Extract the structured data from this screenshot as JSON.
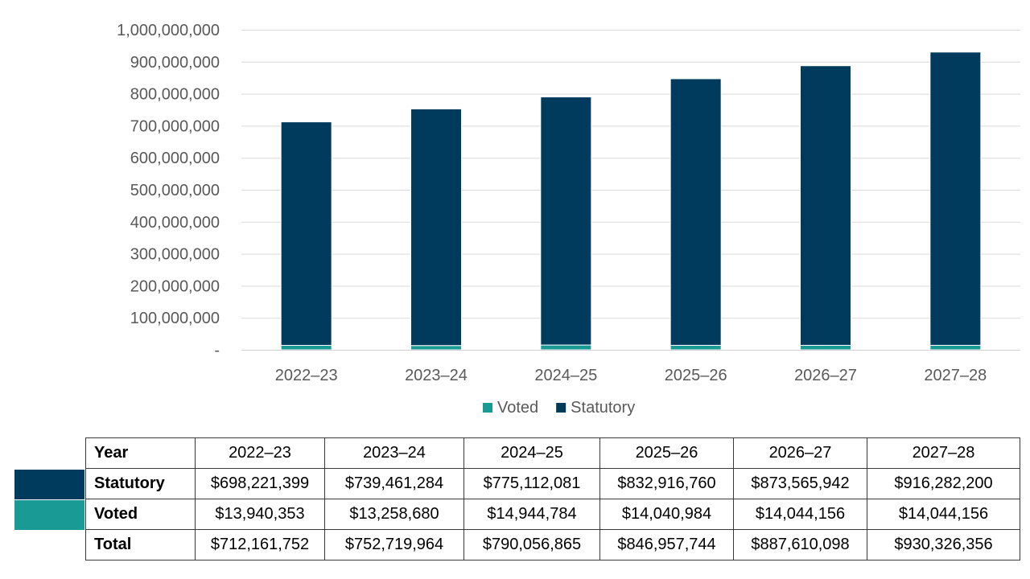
{
  "chart_data": {
    "type": "bar",
    "stacked": true,
    "categories": [
      "2022–23",
      "2023–24",
      "2024–25",
      "2025–26",
      "2026–27",
      "2027–28"
    ],
    "series": [
      {
        "name": "Voted",
        "values": [
          13940353,
          13258680,
          14944784,
          14040984,
          14044156,
          14044156
        ],
        "color": "#1a9a94"
      },
      {
        "name": "Statutory",
        "values": [
          698221399,
          739461284,
          775112081,
          832916760,
          873565942,
          916282200
        ],
        "color": "#003a5d"
      }
    ],
    "ylim": [
      0,
      1000000000
    ],
    "yticks": [
      0,
      100000000,
      200000000,
      300000000,
      400000000,
      500000000,
      600000000,
      700000000,
      800000000,
      900000000,
      1000000000
    ],
    "ytick_labels": [
      "-",
      "100,000,000",
      "200,000,000",
      "300,000,000",
      "400,000,000",
      "500,000,000",
      "600,000,000",
      "700,000,000",
      "800,000,000",
      "900,000,000",
      "1,000,000,000"
    ],
    "grid": true,
    "legend_position": "bottom",
    "title": "",
    "xlabel": "",
    "ylabel": ""
  },
  "table": {
    "header": [
      "Year",
      "2022–23",
      "2023–24",
      "2024–25",
      "2025–26",
      "2026–27",
      "2027–28"
    ],
    "rows": [
      {
        "label": "Statutory",
        "cells": [
          "$698,221,399",
          "$739,461,284",
          "$775,112,081",
          "$832,916,760",
          "$873,565,942",
          "$916,282,200"
        ]
      },
      {
        "label": "Voted",
        "cells": [
          "$13,940,353",
          "$13,258,680",
          "$14,944,784",
          "$14,040,984",
          "$14,044,156",
          "$14,044,156"
        ]
      },
      {
        "label": "Total",
        "cells": [
          "$712,161,752",
          "$752,719,964",
          "$790,056,865",
          "$846,957,744",
          "$887,610,098",
          "$930,326,356"
        ]
      }
    ]
  }
}
